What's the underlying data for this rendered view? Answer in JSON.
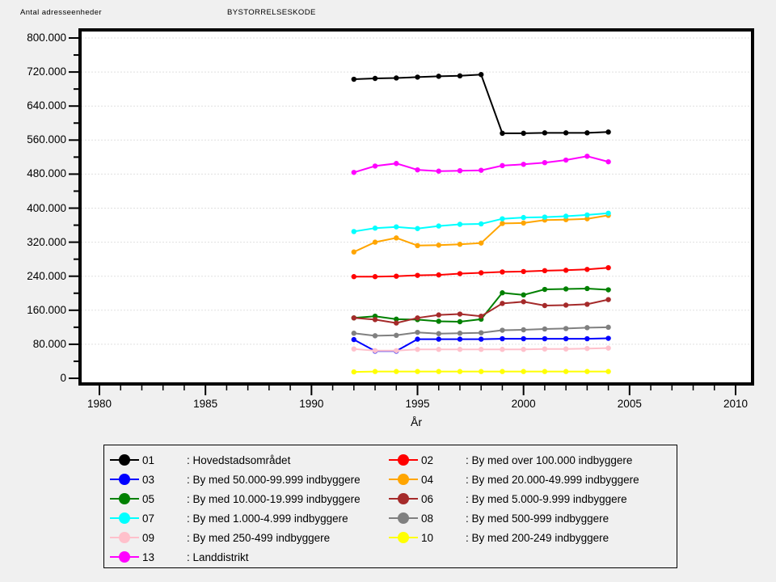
{
  "header": {
    "y_axis_title": "Antal adresseenheder",
    "group_title": "BYSTORRELSESKODE"
  },
  "chart_data": {
    "type": "line",
    "xlabel": "År",
    "ylabel": "Antal adresseenheder",
    "group_label": "BYSTORRELSESKODE",
    "xlim": [
      1979.2,
      2010.9
    ],
    "ylim": [
      0,
      800000
    ],
    "grid": "horizontal-major",
    "legend_position": "bottom-box-two-columns",
    "x_major_ticks": [
      1980,
      1985,
      1990,
      1995,
      2000,
      2005,
      2010
    ],
    "x_minor_tick_step": 1,
    "y_major_tick_step": 80000,
    "y_minor_tick_step": 40000,
    "y_tick_labels": [
      "0",
      "80.000",
      "160.000",
      "240.000",
      "320.000",
      "400.000",
      "480.000",
      "560.000",
      "640.000",
      "720.000",
      "800.000"
    ],
    "x": [
      1992,
      1993,
      1994,
      1995,
      1996,
      1997,
      1998,
      1999,
      2000,
      2001,
      2002,
      2003,
      2004
    ],
    "series": [
      {
        "code": "01",
        "label": ": Hovedstadsområdet",
        "color": "#000000",
        "values": [
          703000,
          705000,
          706000,
          708000,
          710000,
          711000,
          714000,
          576000,
          576000,
          577000,
          577000,
          577000,
          579000
        ]
      },
      {
        "code": "02",
        "label": ": By med over 100.000 indbyggere",
        "color": "#ff0000",
        "values": [
          239000,
          239000,
          240000,
          242000,
          243000,
          246000,
          248000,
          250000,
          251000,
          253000,
          254000,
          256000,
          260000
        ]
      },
      {
        "code": "03",
        "label": ": By med 50.000-99.999 indbyggere",
        "color": "#0000ff",
        "values": [
          91000,
          64000,
          64000,
          92000,
          92000,
          92000,
          92000,
          93000,
          93000,
          93000,
          93000,
          93000,
          94000
        ]
      },
      {
        "code": "04",
        "label": ": By med 20.000-49.999 indbyggere",
        "color": "#ffa500",
        "values": [
          297000,
          320000,
          330000,
          312000,
          313000,
          315000,
          318000,
          364000,
          365000,
          372000,
          373000,
          375000,
          383000
        ]
      },
      {
        "code": "05",
        "label": ": By med 10.000-19.999 indbyggere",
        "color": "#008000",
        "values": [
          142000,
          146000,
          139000,
          138000,
          134000,
          133000,
          139000,
          201000,
          196000,
          209000,
          210000,
          211000,
          208000
        ]
      },
      {
        "code": "06",
        "label": ": By med 5.000-9.999 indbyggere",
        "color": "#a52a2a",
        "values": [
          142000,
          138000,
          130000,
          142000,
          149000,
          151000,
          146000,
          176000,
          180000,
          171000,
          172000,
          174000,
          185000
        ]
      },
      {
        "code": "07",
        "label": ": By med 1.000-4.999 indbyggere",
        "color": "#00ffff",
        "values": [
          345000,
          353000,
          356000,
          352000,
          358000,
          362000,
          363000,
          375000,
          378000,
          379000,
          381000,
          384000,
          388000
        ]
      },
      {
        "code": "08",
        "label": ": By med 500-999 indbyggere",
        "color": "#808080",
        "values": [
          106000,
          100000,
          101000,
          108000,
          105000,
          106000,
          107000,
          113000,
          114000,
          116000,
          117000,
          119000,
          120000
        ]
      },
      {
        "code": "09",
        "label": ": By med 250-499 indbyggere",
        "color": "#ffc0cb",
        "values": [
          69000,
          65000,
          65000,
          68000,
          68000,
          68000,
          68000,
          68000,
          68000,
          69000,
          69000,
          70000,
          71000
        ]
      },
      {
        "code": "10",
        "label": ": By med 200-249 indbyggere",
        "color": "#ffff00",
        "values": [
          15000,
          16000,
          16000,
          16000,
          16000,
          16000,
          16000,
          16000,
          16000,
          16000,
          16000,
          16000,
          16000
        ]
      },
      {
        "code": "13",
        "label": ": Landdistrikt",
        "color": "#ff00ff",
        "values": [
          484000,
          499000,
          505000,
          490000,
          487000,
          488000,
          489000,
          500000,
          503000,
          507000,
          513000,
          522000,
          509000
        ]
      }
    ]
  },
  "legend": {
    "columns": [
      [
        "01",
        "03",
        "05",
        "07",
        "09",
        "13"
      ],
      [
        "02",
        "04",
        "06",
        "08",
        "10"
      ]
    ]
  },
  "colors": {
    "page_background": "#f0f0f0",
    "plot_background": "#ffffff",
    "plot_border": "#000000",
    "gridline": "#e0e0e0"
  }
}
